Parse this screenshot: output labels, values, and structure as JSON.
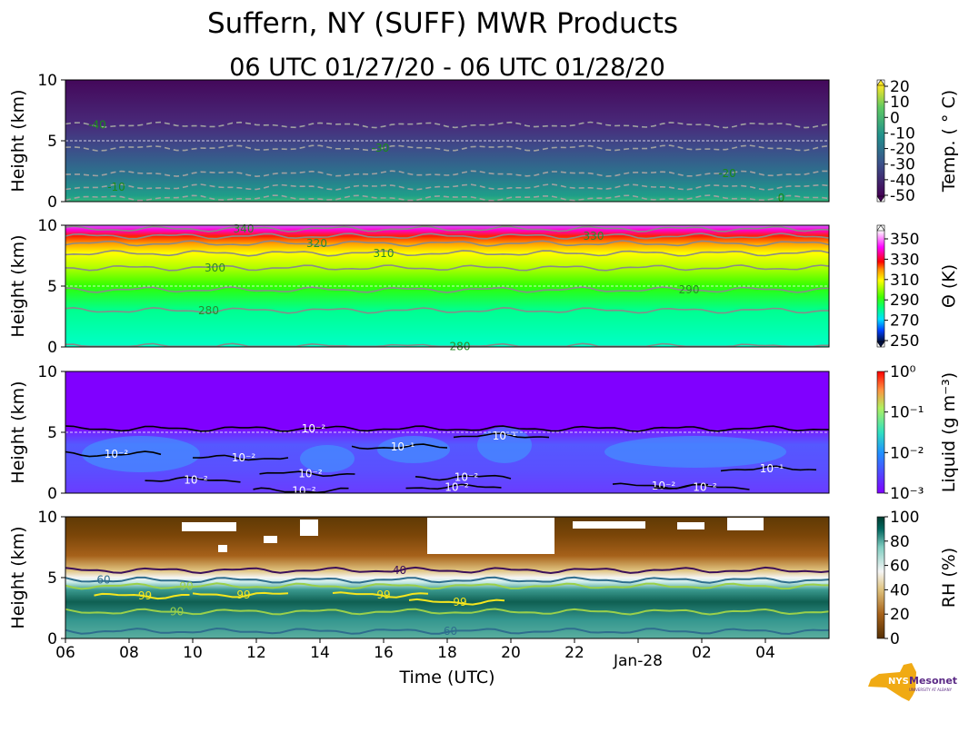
{
  "title": "Suffern, NY (SUFF) MWR Products",
  "subtitle": "06 UTC 01/27/20 - 06 UTC 01/28/20",
  "logo_text": "NYS Mesonet UNIVERSITY AT ALBANY",
  "chart_data": [
    {
      "type": "heatmap",
      "name": "temperature",
      "ylabel": "Height (km)",
      "ylim": [
        0,
        10
      ],
      "yticks": [
        "0",
        "5",
        "10"
      ],
      "colorbar_label": "Temp. ( ° C)",
      "colorbar_ticks": [
        "20",
        "10",
        "0",
        "-10",
        "-20",
        "-30",
        "-40",
        "-50"
      ],
      "colorbar_colors": [
        "#fde725",
        "#440154"
      ],
      "contours": [
        {
          "level": "-40",
          "height_km": 6.3,
          "label_hour": 7
        },
        {
          "level": "-30",
          "height_km": 4.4,
          "label_hour": 15.9
        },
        {
          "level": "-20",
          "height_km": 2.3,
          "label_hour": 26.8
        },
        {
          "level": "-10",
          "height_km": 1.2,
          "label_hour": 7.6
        },
        {
          "level": "0",
          "height_km": 0.3,
          "label_hour": 28.5
        }
      ]
    },
    {
      "type": "heatmap",
      "name": "potential-temperature",
      "ylabel": "Height (km)",
      "ylim": [
        0,
        10
      ],
      "yticks": [
        "0",
        "5",
        "10"
      ],
      "colorbar_label": "Θ (K)",
      "colorbar_ticks": [
        "350",
        "330",
        "310",
        "290",
        "270",
        "250"
      ],
      "contours": [
        {
          "level": "280",
          "height_km": 3.0,
          "label_hour": 10.5
        },
        {
          "level": "290",
          "height_km": 4.7,
          "label_hour": 25.6
        },
        {
          "level": "300",
          "height_km": 6.5,
          "label_hour": 10.7
        },
        {
          "level": "310",
          "height_km": 7.7,
          "label_hour": 16
        },
        {
          "level": "320",
          "height_km": 8.5,
          "label_hour": 13.9
        },
        {
          "level": "330",
          "height_km": 9.1,
          "label_hour": 22.6
        },
        {
          "level": "340",
          "height_km": 9.7,
          "label_hour": 11.6
        },
        {
          "level": "280",
          "height_km": 0.05,
          "label_hour": 18.4
        }
      ]
    },
    {
      "type": "heatmap",
      "name": "liquid",
      "ylabel": "Height (km)",
      "ylim": [
        0,
        10
      ],
      "yticks": [
        "0",
        "5",
        "10"
      ],
      "colorbar_label": "Liquid (g m⁻³)",
      "colorbar_ticks": [
        "10⁰",
        "10⁻¹",
        "10⁻²",
        "10⁻³"
      ],
      "contours": [
        {
          "level": "10⁻²",
          "height_km": 5.3,
          "label_hour": 13.8
        },
        {
          "level": "10⁻²",
          "height_km": 3.2,
          "label_hour": 7.6
        },
        {
          "level": "10⁻²",
          "height_km": 2.9,
          "label_hour": 11.6
        },
        {
          "level": "10⁻²",
          "height_km": 1.6,
          "label_hour": 13.7
        },
        {
          "level": "10⁻²",
          "height_km": 1.1,
          "label_hour": 10.1
        },
        {
          "level": "10⁻²",
          "height_km": 0.2,
          "label_hour": 13.5
        },
        {
          "level": "10⁻¹",
          "height_km": 3.8,
          "label_hour": 16.6
        },
        {
          "level": "10⁻¹",
          "height_km": 4.7,
          "label_hour": 19.8
        },
        {
          "level": "10⁻²",
          "height_km": 1.3,
          "label_hour": 18.6
        },
        {
          "level": "10⁻²",
          "height_km": 0.5,
          "label_hour": 18.3
        },
        {
          "level": "10⁻²",
          "height_km": 0.6,
          "label_hour": 24.8
        },
        {
          "level": "10⁻²",
          "height_km": 0.5,
          "label_hour": 26.1
        },
        {
          "level": "10⁻¹",
          "height_km": 2.0,
          "label_hour": 28.2
        }
      ]
    },
    {
      "type": "heatmap",
      "name": "relative-humidity",
      "ylabel": "Height (km)",
      "ylim": [
        0,
        10
      ],
      "yticks": [
        "0",
        "5",
        "10"
      ],
      "colorbar_label": "RH (%)",
      "colorbar_ticks": [
        "100",
        "80",
        "60",
        "40",
        "20",
        "0"
      ],
      "contours": [
        {
          "level": "40",
          "height_km": 5.6,
          "label_hour": 16.5,
          "color": "#3b0f5a"
        },
        {
          "level": "60",
          "height_km": 4.8,
          "label_hour": 7.2,
          "color": "#2e6e8e"
        },
        {
          "level": "90",
          "height_km": 4.3,
          "label_hour": 9.8,
          "color": "#9ad04a"
        },
        {
          "level": "99",
          "height_km": 3.5,
          "label_hour": 8.5,
          "color": "#f5e61e"
        },
        {
          "level": "99",
          "height_km": 3.6,
          "label_hour": 11.6,
          "color": "#f5e61e"
        },
        {
          "level": "99",
          "height_km": 3.6,
          "label_hour": 16,
          "color": "#f5e61e"
        },
        {
          "level": "99",
          "height_km": 3.0,
          "label_hour": 18.4,
          "color": "#f5e61e"
        },
        {
          "level": "90",
          "height_km": 2.2,
          "label_hour": 9.5,
          "color": "#9ad04a"
        },
        {
          "level": "60",
          "height_km": 0.6,
          "label_hour": 18.1,
          "color": "#2e6e8e"
        }
      ],
      "xlabel": "Time (UTC)",
      "xticks": [
        "06",
        "08",
        "10",
        "12",
        "14",
        "16",
        "18",
        "20",
        "22",
        "Jan-28",
        "02",
        "04"
      ],
      "xlim_hours": [
        6,
        30
      ]
    }
  ]
}
